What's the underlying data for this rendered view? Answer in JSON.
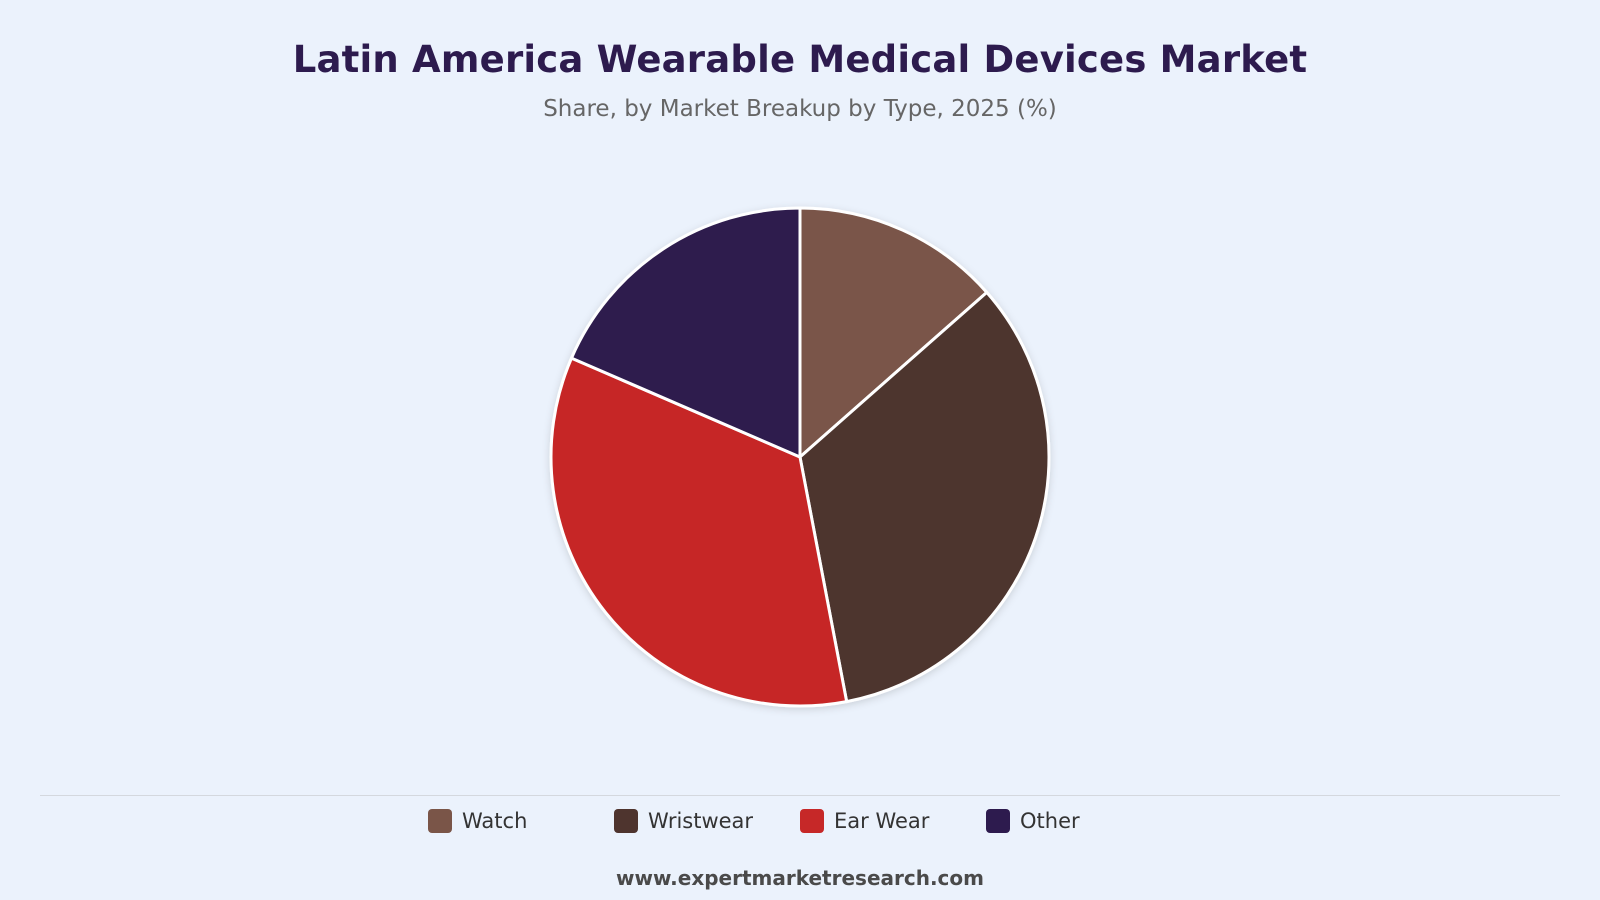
{
  "header": {
    "title": "Latin America Wearable Medical Devices Market",
    "subtitle": "Share, by Market Breakup by Type, 2025 (%)"
  },
  "chart_data": {
    "type": "pie",
    "title": "Latin America Wearable Medical Devices Market",
    "subtitle": "Share, by Market Breakup by Type, 2025 (%)",
    "categories": [
      "Watch",
      "Wristwear",
      "Ear Wear",
      "Other"
    ],
    "values": [
      13.5,
      33.5,
      34.5,
      18.5
    ],
    "colors": [
      "#7a5548",
      "#4e342e",
      "#c62828",
      "#2d1b4e"
    ],
    "legend_position": "bottom"
  },
  "footer": {
    "source": "www.expertmarketresearch.com"
  }
}
